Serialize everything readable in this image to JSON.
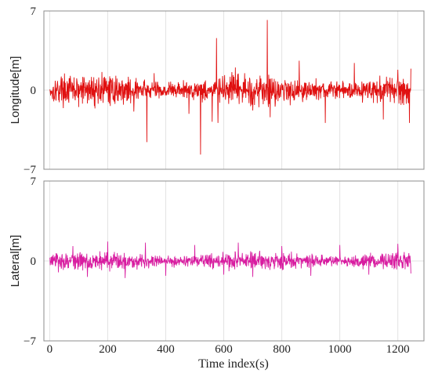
{
  "chart_data": {
    "type": "line",
    "xlabel": "Time index(s)",
    "xlim": [
      -20,
      1290
    ],
    "xticks": [
      0,
      200,
      400,
      600,
      800,
      1000,
      1200
    ],
    "grid": true,
    "panels": [
      {
        "ylabel": "Longitude[m]",
        "ylim": [
          -7,
          7
        ],
        "yticks": [
          -7,
          0,
          7
        ],
        "color": "#e01010",
        "series": [
          {
            "x_range": [
              0,
              1245
            ],
            "amplitude": 1.7,
            "points": [
              [
                0,
                0.0
              ],
              [
                10,
                -0.8
              ],
              [
                40,
                1.2
              ],
              [
                100,
                -1.5
              ],
              [
                180,
                1.6
              ],
              [
                230,
                0.4
              ],
              [
                290,
                -1.9
              ],
              [
                335,
                -4.6
              ],
              [
                360,
                1.5
              ],
              [
                480,
                -2.1
              ],
              [
                500,
                0.6
              ],
              [
                520,
                -5.7
              ],
              [
                560,
                -2.8
              ],
              [
                575,
                4.6
              ],
              [
                580,
                -2.9
              ],
              [
                640,
                2.0
              ],
              [
                700,
                -1.8
              ],
              [
                750,
                6.2
              ],
              [
                760,
                -2.4
              ],
              [
                860,
                2.6
              ],
              [
                950,
                -2.9
              ],
              [
                1050,
                2.4
              ],
              [
                1150,
                -2.6
              ],
              [
                1200,
                1.8
              ],
              [
                1240,
                -2.9
              ],
              [
                1245,
                1.9
              ]
            ]
          }
        ]
      },
      {
        "ylabel": "Lateral[m]",
        "ylim": [
          -7,
          7
        ],
        "yticks": [
          -7,
          0,
          7
        ],
        "color": "#d81ca0",
        "series": [
          {
            "x_range": [
              0,
              1245
            ],
            "amplitude": 1.05,
            "points": [
              [
                0,
                0.2
              ],
              [
                30,
                -1.0
              ],
              [
                80,
                1.3
              ],
              [
                130,
                -1.4
              ],
              [
                200,
                1.7
              ],
              [
                260,
                -1.5
              ],
              [
                330,
                1.6
              ],
              [
                400,
                -1.3
              ],
              [
                500,
                1.4
              ],
              [
                600,
                -1.2
              ],
              [
                650,
                1.6
              ],
              [
                700,
                -1.4
              ],
              [
                800,
                1.3
              ],
              [
                900,
                -1.3
              ],
              [
                1000,
                1.4
              ],
              [
                1100,
                -1.2
              ],
              [
                1200,
                1.5
              ],
              [
                1245,
                -1.1
              ]
            ]
          }
        ]
      }
    ]
  }
}
